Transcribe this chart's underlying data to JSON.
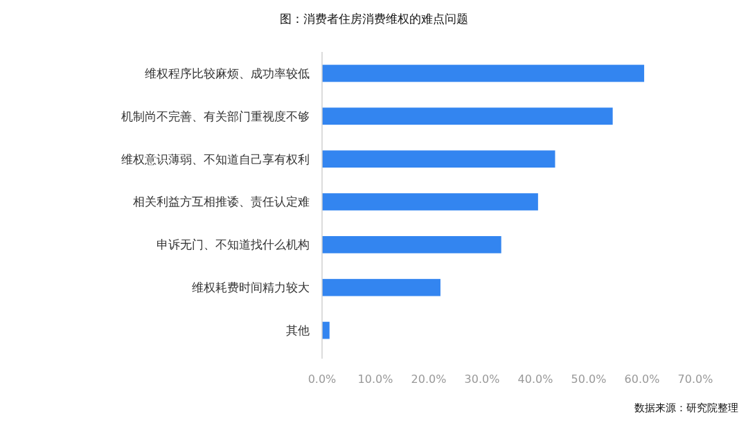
{
  "chart_data": {
    "type": "bar",
    "orientation": "horizontal",
    "title": "图：消费者住房消费维权的难点问题",
    "categories": [
      "维权程序比较麻烦、成功率较低",
      "机制尚不完善、有关部门重视度不够",
      "维权意识薄弱、不知道自己享有权利",
      "相关利益方互相推诿、责任认定难",
      "申诉无门、不知道找什么机构",
      "维权耗费时间精力较大",
      "其他"
    ],
    "values": [
      60.4,
      54.5,
      43.7,
      40.5,
      33.6,
      22.2,
      1.4
    ],
    "color": "#3385f0",
    "xlim": [
      0,
      70
    ],
    "xticks": [
      {
        "value": 0,
        "label": "0.0%"
      },
      {
        "value": 10,
        "label": "10.0%"
      },
      {
        "value": 20,
        "label": "20.0%"
      },
      {
        "value": 30,
        "label": "30.0%"
      },
      {
        "value": 40,
        "label": "40.0%"
      },
      {
        "value": 50,
        "label": "50.0%"
      },
      {
        "value": 60,
        "label": "60.0%"
      },
      {
        "value": 70,
        "label": "70.0%"
      }
    ],
    "grid": false,
    "annotations": [
      "数据来源：研究院整理"
    ]
  }
}
